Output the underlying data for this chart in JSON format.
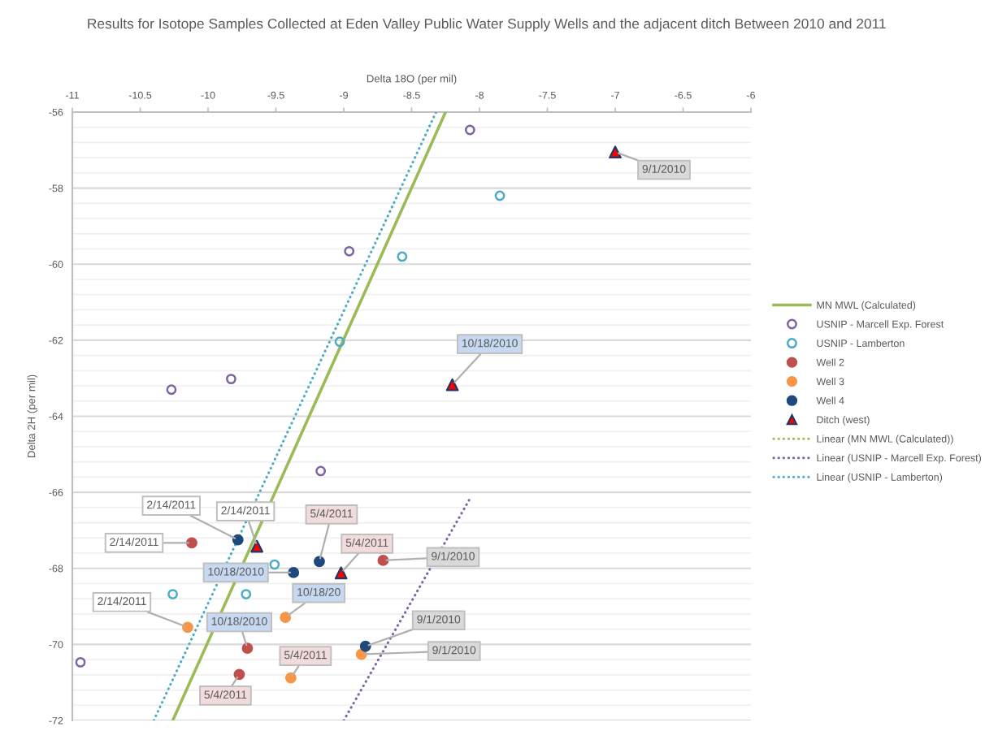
{
  "chart_data": {
    "type": "scatter",
    "title": "Results for Isotope Samples Collected at Eden Valley Public Water Supply Wells and the adjacent ditch Between 2010 and 2011",
    "xlabel": "Delta 18O (per mil)",
    "ylabel": "Delta 2H (per mil)",
    "xlim": [
      -11,
      -6
    ],
    "xticks": [
      -11,
      -10.5,
      -10,
      -9.5,
      -9,
      -8.5,
      -8,
      -7.5,
      -7,
      -6.5,
      -6
    ],
    "ylim": [
      -72,
      -56
    ],
    "yticks": [
      -56,
      {
        "value": -56.4,
        "label": null
      },
      {
        "value": -56.8,
        "label": null
      },
      {
        "value": -57.2,
        "label": null
      },
      {
        "value": -57.6,
        "label": null
      },
      -58,
      {
        "value": -58.4,
        "label": null
      },
      {
        "value": -58.8,
        "label": null
      },
      {
        "value": -59.2,
        "label": null
      },
      {
        "value": -59.6,
        "label": null
      },
      -60,
      {
        "value": -60.4,
        "label": null
      },
      {
        "value": -60.8,
        "label": null
      },
      {
        "value": -61.2,
        "label": null
      },
      {
        "value": -61.6,
        "label": null
      },
      -62,
      {
        "value": -62.4,
        "label": null
      },
      {
        "value": -62.8,
        "label": null
      },
      {
        "value": -63.2,
        "label": null
      },
      {
        "value": -63.6,
        "label": null
      },
      -64,
      {
        "value": -64.4,
        "label": null
      },
      {
        "value": -64.8,
        "label": null
      },
      {
        "value": -65.2,
        "label": null
      },
      {
        "value": -65.6,
        "label": null
      },
      -66,
      {
        "value": -66.4,
        "label": null
      },
      {
        "value": -66.8,
        "label": null
      },
      {
        "value": -67.2,
        "label": null
      },
      {
        "value": -67.6,
        "label": null
      },
      -68,
      {
        "value": -68.4,
        "label": null
      },
      {
        "value": -68.8,
        "label": null
      },
      {
        "value": -69.2,
        "label": null
      },
      {
        "value": -69.6,
        "label": null
      },
      -70,
      {
        "value": -70.4,
        "label": null
      },
      {
        "value": -70.8,
        "label": null
      },
      {
        "value": -71.2,
        "label": null
      },
      {
        "value": -71.6,
        "label": null
      },
      -72
    ],
    "grid": "y",
    "legend": "right",
    "series": [
      {
        "name": "MN MWL (Calculated)",
        "type": "line",
        "color": "#9bbb59",
        "line_style": "solid",
        "marker": "none",
        "x": [
          -10.26,
          -8.25
        ],
        "values": [
          -72,
          -56
        ]
      },
      {
        "name": "USNIP - Marcell Exp. Forest",
        "color": "#8064a2",
        "marker": "circle",
        "x": [
          -8.07,
          -8.96,
          -9.83,
          -10.27,
          -9.17,
          -10.94
        ],
        "values": [
          -56.47,
          -59.66,
          -63.02,
          -63.3,
          -65.44,
          -70.47
        ]
      },
      {
        "name": "USNIP - Lamberton",
        "color": "#4bacc6",
        "marker": "circle",
        "x": [
          -7.85,
          -8.57,
          -9.03,
          -9.51,
          -10.26,
          -9.72
        ],
        "values": [
          -58.2,
          -59.8,
          -62.04,
          -67.9,
          -68.68,
          -68.68
        ]
      },
      {
        "name": "Well 2",
        "color": "#c0504d",
        "marker": "circle",
        "x": [
          -10.12,
          -8.71,
          -9.71,
          -9.77
        ],
        "values": [
          -67.33,
          -67.79,
          -70.1,
          -70.79
        ]
      },
      {
        "name": "Well 3",
        "color": "#f79646",
        "marker": "circle",
        "x": [
          -10.15,
          -9.43,
          -9.39,
          -8.87
        ],
        "values": [
          -69.55,
          -69.29,
          -70.88,
          -70.26
        ]
      },
      {
        "name": "Well 4",
        "color": "#1f497d",
        "marker": "circle",
        "x": [
          -9.78,
          -9.18,
          -9.37,
          -8.84
        ],
        "values": [
          -67.25,
          -67.82,
          -68.11,
          -70.05
        ]
      },
      {
        "name": "Ditch (west)",
        "color": "#ff0000",
        "marker": "triangle",
        "x": [
          -7.0,
          -8.2,
          -9.64,
          -9.02
        ],
        "values": [
          -57.05,
          -63.17,
          -67.42,
          -68.12
        ]
      },
      {
        "name": "Linear (MN MWL (Calculated))",
        "type": "line",
        "color": "#9bbb59",
        "line_style": "dotted",
        "marker": "none"
      },
      {
        "name": "Linear (USNIP - Marcell Exp. Forest)",
        "type": "line",
        "color": "#8064a2",
        "line_style": "dotted",
        "marker": "none",
        "x": [
          -9.0,
          -8.06
        ],
        "values": [
          -72,
          -66.1
        ]
      },
      {
        "name": "Linear (USNIP - Lamberton)",
        "type": "line",
        "color": "#4bacc6",
        "line_style": "dotted",
        "marker": "none",
        "x": [
          -10.4,
          -8.32
        ],
        "values": [
          -72,
          -56
        ]
      }
    ],
    "annotations": [
      {
        "text": "9/1/2010",
        "x": -7.0,
        "y": -57.05
      },
      {
        "text": "10/18/2010",
        "x": -8.2,
        "y": -63.17
      },
      {
        "text": "2/14/2011",
        "x": -9.78,
        "y": -67.25
      },
      {
        "text": "2/14/2011",
        "x": -9.64,
        "y": -67.42
      },
      {
        "text": "5/4/2011",
        "x": -9.18,
        "y": -67.82
      },
      {
        "text": "5/4/2011",
        "x": -9.02,
        "y": -68.12
      },
      {
        "text": "2/14/2011",
        "x": -10.12,
        "y": -67.33
      },
      {
        "text": "9/1/2010",
        "x": -8.71,
        "y": -67.79
      },
      {
        "text": "10/18/2010",
        "x": -9.37,
        "y": -68.11
      },
      {
        "text": "10/18/20",
        "x": -9.43,
        "y": -69.29
      },
      {
        "text": "2/14/2011",
        "x": -10.15,
        "y": -69.55
      },
      {
        "text": "10/18/2010",
        "x": -9.71,
        "y": -70.1
      },
      {
        "text": "9/1/2010",
        "x": -8.84,
        "y": -70.05
      },
      {
        "text": "9/1/2010",
        "x": -8.87,
        "y": -70.26
      },
      {
        "text": "5/4/2011",
        "x": -9.39,
        "y": -70.88
      },
      {
        "text": "5/4/2011",
        "x": -9.77,
        "y": -70.79
      }
    ]
  }
}
